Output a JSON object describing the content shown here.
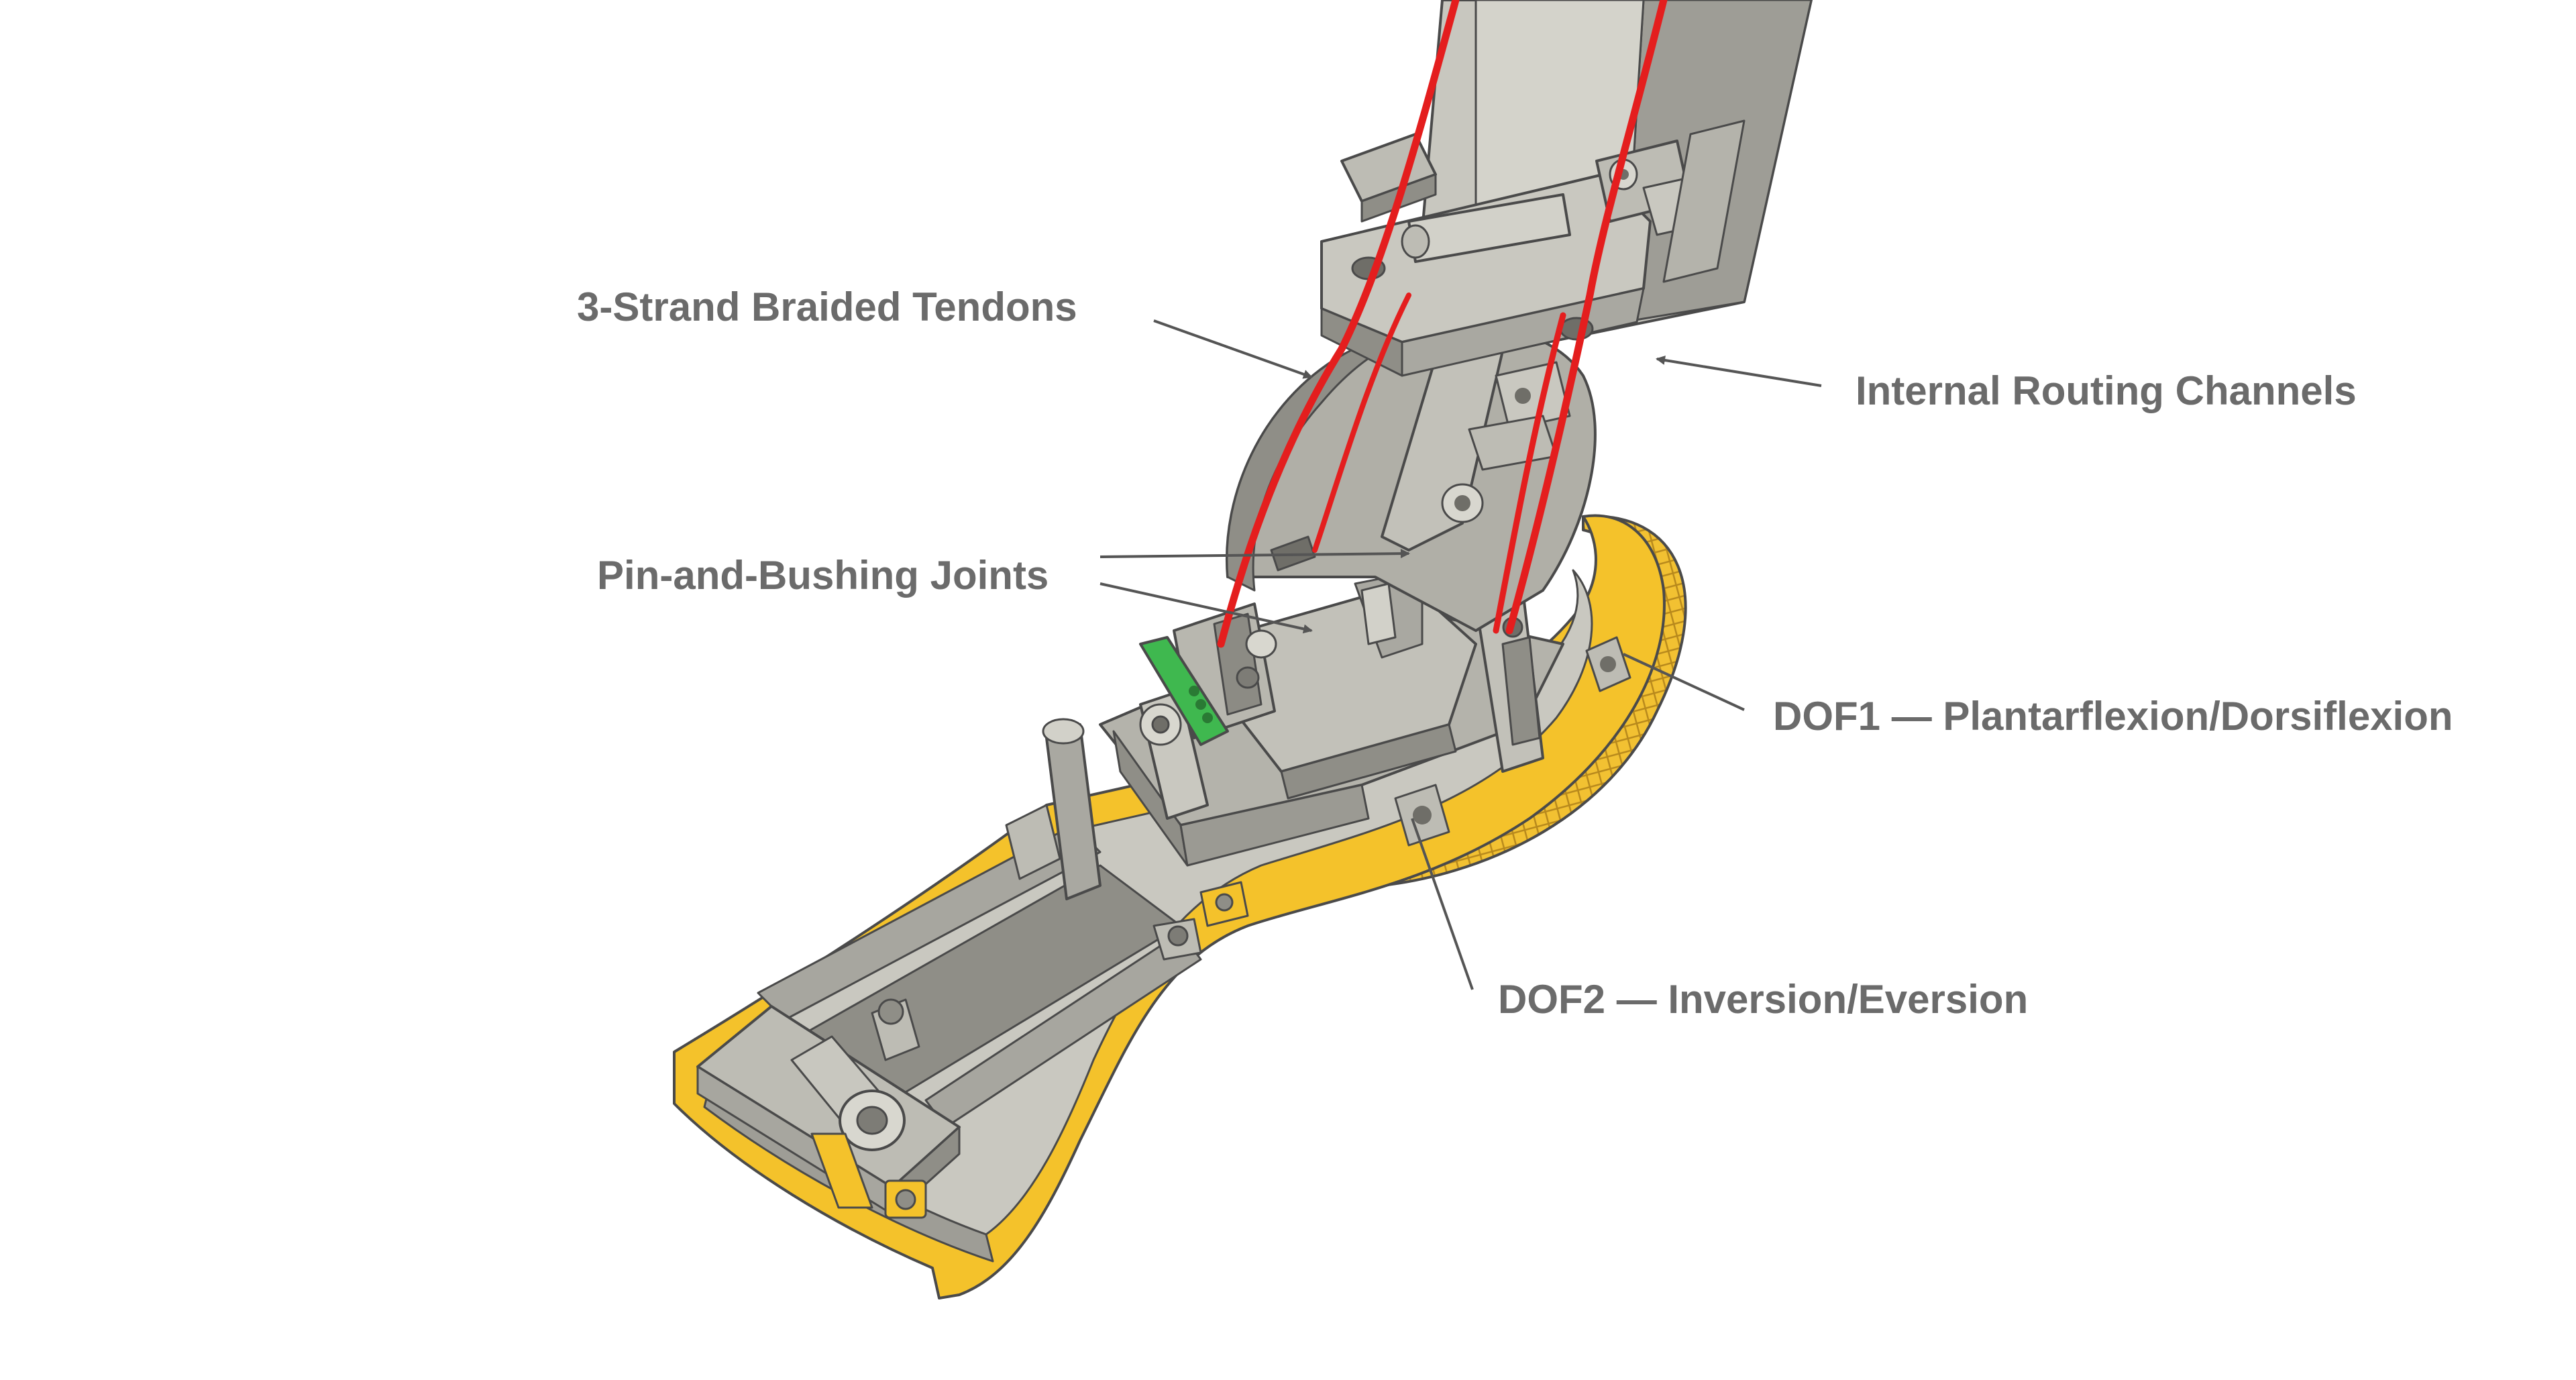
{
  "labels": {
    "tendons": "3-Strand Braided Tendons",
    "routing": "Internal Routing Channels",
    "joints": "Pin-and-Bushing Joints",
    "dof1": "DOF1 — Plantarflexion/Dorsiflexion",
    "dof2": "DOF2 — Inversion/Eversion"
  },
  "colors": {
    "tendon": "#e41e1e",
    "shell": "#f4c22b",
    "shell_edge": "#c7951a",
    "body": "#bdbcb4",
    "body_dark": "#8f8e87",
    "body_light": "#d9d8d0",
    "bushing_green": "#3fb84f",
    "label_text": "#6b6b6b",
    "leader": "#555555"
  }
}
